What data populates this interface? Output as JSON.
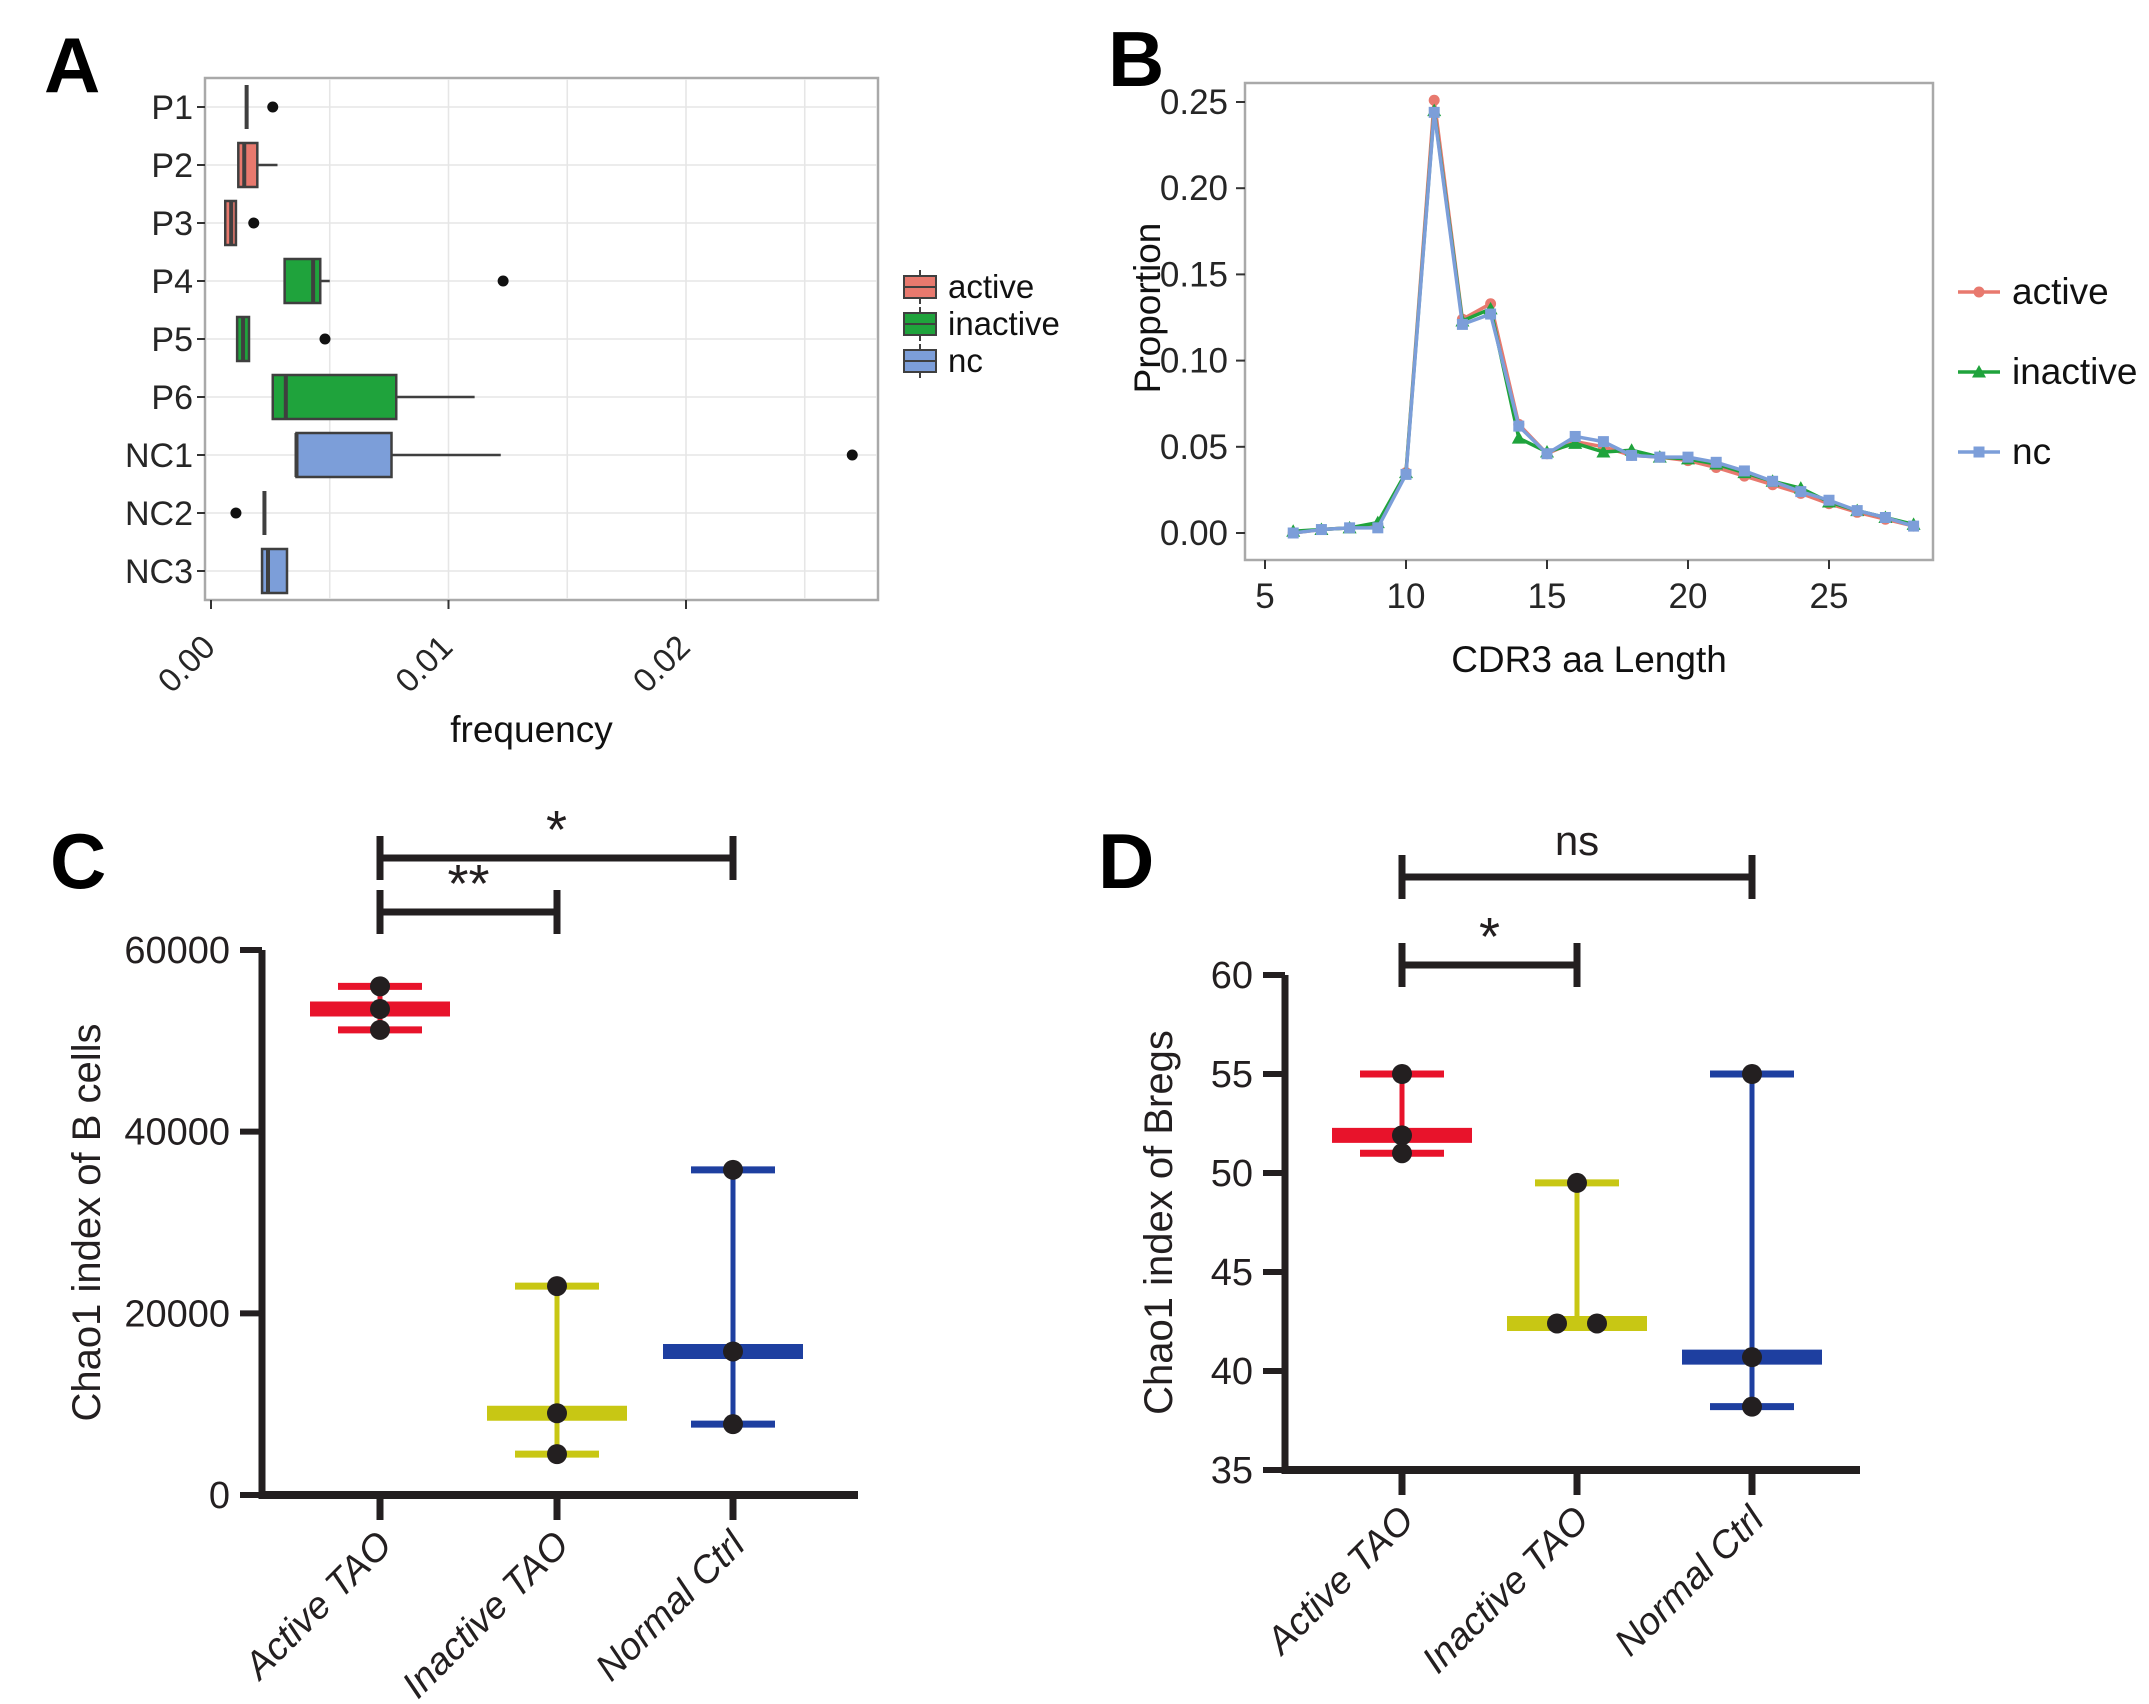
{
  "figure_labels": {
    "A": "A",
    "B": "B",
    "C": "C",
    "D": "D"
  },
  "colors": {
    "salmon": "#E8796E",
    "green": "#1FA33C",
    "periwinkle": "#7C9ED9",
    "red": "#E8132B",
    "yellow": "#C8C714",
    "blue": "#1E3FA0",
    "ink": "#231F20",
    "box_stroke": "#3F3F3F",
    "panel_border": "#A9A9A9",
    "grid": "#E6E6E6",
    "tick_text": "#262626"
  },
  "chart_data": [
    {
      "id": "A",
      "type": "boxplot",
      "orientation": "horizontal",
      "xlabel": "frequency",
      "x_range": [
        0,
        0.028
      ],
      "x_ticks": [
        0,
        0.01,
        0.02
      ],
      "x_tick_labels": [
        "0.00",
        "0.01",
        "0.02"
      ],
      "x_gridlines": [
        0.005,
        0.01,
        0.015,
        0.02,
        0.025
      ],
      "categories": [
        "P1",
        "P2",
        "P3",
        "P4",
        "P5",
        "P6",
        "NC1",
        "NC2",
        "NC3"
      ],
      "legend": {
        "position": "right",
        "items": [
          {
            "label": "active",
            "color_key": "salmon"
          },
          {
            "label": "inactive",
            "color_key": "green"
          },
          {
            "label": "nc",
            "color_key": "periwinkle"
          }
        ]
      },
      "rows": [
        {
          "label": "P1",
          "series": "active",
          "degenerate": true,
          "q1": 0.0015,
          "median": 0.0015,
          "q3": 0.0015,
          "whisker_low": 0.0015,
          "whisker_high": 0.0015,
          "outliers": [
            0.0026
          ]
        },
        {
          "label": "P2",
          "series": "active",
          "degenerate": false,
          "q1": 0.00115,
          "median": 0.0014,
          "q3": 0.00195,
          "whisker_low": 0.00115,
          "whisker_high": 0.0028,
          "outliers": []
        },
        {
          "label": "P3",
          "series": "active",
          "degenerate": false,
          "q1": 0.0006,
          "median": 0.00085,
          "q3": 0.00105,
          "whisker_low": 0.0006,
          "whisker_high": 0.00105,
          "outliers": [
            0.0018
          ]
        },
        {
          "label": "P4",
          "series": "inactive",
          "degenerate": false,
          "q1": 0.0031,
          "median": 0.0043,
          "q3": 0.0046,
          "whisker_low": 0.0031,
          "whisker_high": 0.005,
          "outliers": [
            0.0123
          ]
        },
        {
          "label": "P5",
          "series": "inactive",
          "degenerate": false,
          "q1": 0.0011,
          "median": 0.00135,
          "q3": 0.0016,
          "whisker_low": 0.0011,
          "whisker_high": 0.0016,
          "outliers": [
            0.0048
          ]
        },
        {
          "label": "P6",
          "series": "inactive",
          "degenerate": false,
          "q1": 0.0026,
          "median": 0.00315,
          "q3": 0.0078,
          "whisker_low": 0.0026,
          "whisker_high": 0.0111,
          "outliers": []
        },
        {
          "label": "NC1",
          "series": "nc",
          "degenerate": false,
          "q1": 0.0036,
          "median": 0.0036,
          "q3": 0.0076,
          "whisker_low": 0.0036,
          "whisker_high": 0.0122,
          "outliers": [
            0.027
          ]
        },
        {
          "label": "NC2",
          "series": "nc",
          "degenerate": true,
          "q1": 0.00225,
          "median": 0.00225,
          "q3": 0.00225,
          "whisker_low": 0.00225,
          "whisker_high": 0.00225,
          "outliers": [
            0.00105
          ]
        },
        {
          "label": "NC3",
          "series": "nc",
          "degenerate": false,
          "q1": 0.00215,
          "median": 0.0024,
          "q3": 0.0032,
          "whisker_low": 0.00215,
          "whisker_high": 0.0032,
          "outliers": []
        }
      ]
    },
    {
      "id": "B",
      "type": "line",
      "xlabel": "CDR3 aa Length",
      "ylabel": "Proportion",
      "x_ticks": [
        5,
        10,
        15,
        20,
        25
      ],
      "x_tick_labels": [
        "5",
        "10",
        "15",
        "20",
        "25"
      ],
      "y_ticks": [
        0,
        0.05,
        0.1,
        0.15,
        0.2,
        0.25
      ],
      "y_tick_labels": [
        "0.00",
        "0.05",
        "0.10",
        "0.15",
        "0.20",
        "0.25"
      ],
      "x": [
        6,
        7,
        8,
        9,
        10,
        11,
        12,
        13,
        14,
        15,
        16,
        17,
        18,
        19,
        20,
        21,
        22,
        23,
        24,
        25,
        26,
        27,
        28
      ],
      "series": [
        {
          "name": "active",
          "marker": "circle",
          "color_key": "salmon",
          "values": [
            0.0,
            0.002,
            0.003,
            0.004,
            0.035,
            0.251,
            0.124,
            0.133,
            0.063,
            0.046,
            0.053,
            0.05,
            0.045,
            0.044,
            0.042,
            0.038,
            0.033,
            0.028,
            0.023,
            0.017,
            0.012,
            0.008,
            0.004
          ]
        },
        {
          "name": "inactive",
          "marker": "triangle",
          "color_key": "green",
          "values": [
            0.001,
            0.002,
            0.003,
            0.006,
            0.035,
            0.245,
            0.123,
            0.13,
            0.055,
            0.047,
            0.052,
            0.047,
            0.048,
            0.044,
            0.043,
            0.04,
            0.035,
            0.03,
            0.026,
            0.018,
            0.013,
            0.009,
            0.005
          ]
        },
        {
          "name": "nc",
          "marker": "square",
          "color_key": "periwinkle",
          "values": [
            0.0,
            0.002,
            0.003,
            0.003,
            0.034,
            0.244,
            0.121,
            0.127,
            0.062,
            0.046,
            0.056,
            0.053,
            0.045,
            0.044,
            0.044,
            0.041,
            0.036,
            0.03,
            0.024,
            0.019,
            0.013,
            0.009,
            0.004
          ]
        }
      ],
      "legend": {
        "position": "right",
        "items": [
          "active",
          "inactive",
          "nc"
        ]
      }
    },
    {
      "id": "C",
      "type": "scatter",
      "subtype": "min-median-max",
      "ylabel": "Chao1  index of B cells",
      "y_range": [
        0,
        60000
      ],
      "y_ticks": [
        0,
        20000,
        40000,
        60000
      ],
      "y_tick_labels": [
        "0",
        "20000",
        "40000",
        "60000"
      ],
      "categories": [
        "Active TAO",
        "Inactive TAO",
        "Normal Ctrl"
      ],
      "groups": [
        {
          "label": "Active TAO",
          "color_key": "red",
          "max": 56000,
          "median": 53500,
          "min": 51200,
          "points": [
            {
              "v": 56000,
              "dx": 0
            },
            {
              "v": 53500,
              "dx": 0
            },
            {
              "v": 51200,
              "dx": 0
            }
          ]
        },
        {
          "label": "Inactive TAO",
          "color_key": "yellow",
          "max": 23000,
          "median": 9000,
          "min": 4500,
          "points": [
            {
              "v": 23000,
              "dx": 0
            },
            {
              "v": 9000,
              "dx": 0
            },
            {
              "v": 4500,
              "dx": 0
            }
          ]
        },
        {
          "label": "Normal Ctrl",
          "color_key": "blue",
          "max": 35800,
          "median": 15800,
          "min": 7800,
          "points": [
            {
              "v": 35800,
              "dx": 0
            },
            {
              "v": 15800,
              "dx": 0
            },
            {
              "v": 7800,
              "dx": 0
            }
          ]
        }
      ],
      "significance": [
        {
          "label": "**",
          "from": 0,
          "to": 1,
          "level": 0
        },
        {
          "label": "*",
          "from": 0,
          "to": 2,
          "level": 1
        }
      ]
    },
    {
      "id": "D",
      "type": "scatter",
      "subtype": "min-median-max",
      "ylabel": "Chao1  index of Bregs",
      "y_range": [
        35,
        60
      ],
      "y_ticks": [
        35,
        40,
        45,
        50,
        55,
        60
      ],
      "y_tick_labels": [
        "35",
        "40",
        "45",
        "50",
        "55",
        "60"
      ],
      "categories": [
        "Active TAO",
        "Inactive TAO",
        "Normal Ctrl"
      ],
      "groups": [
        {
          "label": "Active TAO",
          "color_key": "red",
          "max": 55.0,
          "median": 51.9,
          "min": 51.0,
          "points": [
            {
              "v": 55.0,
              "dx": 0
            },
            {
              "v": 51.9,
              "dx": 0
            },
            {
              "v": 51.0,
              "dx": 0
            }
          ]
        },
        {
          "label": "Inactive TAO",
          "color_key": "yellow",
          "max": 49.5,
          "median": 42.4,
          "min": 42.4,
          "points": [
            {
              "v": 49.5,
              "dx": 0
            },
            {
              "v": 42.4,
              "dx": -20
            },
            {
              "v": 42.4,
              "dx": 20
            }
          ]
        },
        {
          "label": "Normal Ctrl",
          "color_key": "blue",
          "max": 55.0,
          "median": 40.7,
          "min": 38.2,
          "points": [
            {
              "v": 55.0,
              "dx": 0
            },
            {
              "v": 40.7,
              "dx": 0
            },
            {
              "v": 38.2,
              "dx": 0
            }
          ]
        }
      ],
      "significance": [
        {
          "label": "*",
          "from": 0,
          "to": 1,
          "level": 0
        },
        {
          "label": "ns",
          "from": 0,
          "to": 2,
          "level": 1
        }
      ]
    }
  ]
}
